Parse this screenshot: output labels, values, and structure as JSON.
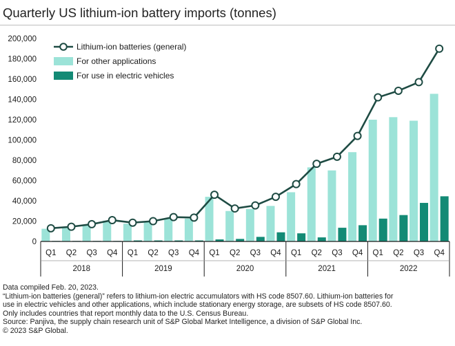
{
  "title": "Quarterly US lithium-ion battery imports (tonnes)",
  "colors": {
    "line": "#1e4b43",
    "other": "#9ce3d8",
    "ev": "#138a75",
    "axis": "#1a1a1a",
    "grid": "#e6e6e6"
  },
  "chart_data": {
    "type": "bar",
    "title": "Quarterly US lithium-ion battery imports (tonnes)",
    "xlabel": "",
    "ylabel": "",
    "ylim": [
      0,
      200000
    ],
    "yticks": [
      0,
      20000,
      40000,
      60000,
      80000,
      100000,
      120000,
      140000,
      160000,
      180000,
      200000
    ],
    "ytick_labels": [
      "0",
      "20,000",
      "40,000",
      "60,000",
      "80,000",
      "100,000",
      "120,000",
      "140,000",
      "160,000",
      "180,000",
      "200,000"
    ],
    "categories": [
      "Q1",
      "Q2",
      "Q3",
      "Q4",
      "Q1",
      "Q2",
      "Q3",
      "Q4",
      "Q1",
      "Q2",
      "Q3",
      "Q4",
      "Q1",
      "Q2",
      "Q3",
      "Q4",
      "Q1",
      "Q2",
      "Q3",
      "Q4"
    ],
    "years": [
      "2018",
      "2019",
      "2020",
      "2021",
      "2022"
    ],
    "legend_position": "top-left",
    "series": [
      {
        "name": "Lithium-ion batteries (general)",
        "type": "line",
        "values": [
          13000,
          14500,
          17000,
          21000,
          18500,
          20000,
          24000,
          23500,
          46000,
          32500,
          35500,
          44000,
          56500,
          76500,
          83500,
          104000,
          142000,
          148500,
          157000,
          190000
        ]
      },
      {
        "name": "For other applications",
        "type": "bar",
        "values": [
          12500,
          14000,
          16500,
          20500,
          17500,
          19000,
          23000,
          22500,
          44000,
          30000,
          32000,
          35000,
          48500,
          73000,
          70000,
          88000,
          120000,
          122500,
          119000,
          145500
        ]
      },
      {
        "name": "For use in electric vehicles",
        "type": "bar",
        "values": [
          500,
          500,
          500,
          500,
          1000,
          1000,
          1000,
          1000,
          2000,
          2500,
          4500,
          9000,
          8000,
          4000,
          13500,
          16000,
          22500,
          26000,
          38000,
          44500
        ]
      }
    ]
  },
  "notes": [
    "Data compiled Feb. 20, 2023.",
    "“Lithium-ion batteries (general)” refers to lithium-ion electric accumulators with HS code 8507.60. Lithium-ion batteries for",
    "use in electric vehicles and other applications, which include stationary energy storage, are subsets of HS code 8507.60.",
    "Only includes countries that report monthly data to the U.S. Census Bureau.",
    "Source: Panjiva, the supply chain research unit of S&P Global Market Intelligence, a division of S&P Global Inc.",
    "© 2023 S&P Global."
  ]
}
